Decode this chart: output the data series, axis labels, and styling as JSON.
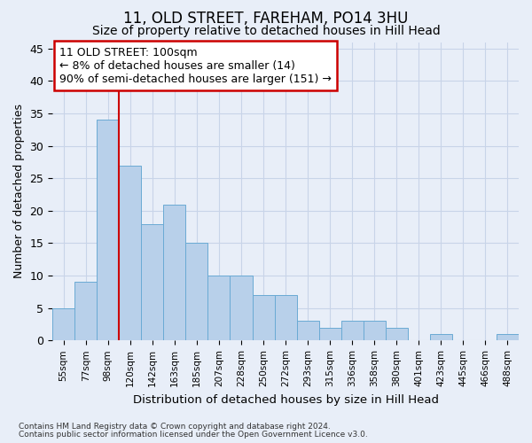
{
  "title": "11, OLD STREET, FAREHAM, PO14 3HU",
  "subtitle": "Size of property relative to detached houses in Hill Head",
  "xlabel": "Distribution of detached houses by size in Hill Head",
  "ylabel": "Number of detached properties",
  "categories": [
    "55sqm",
    "77sqm",
    "98sqm",
    "120sqm",
    "142sqm",
    "163sqm",
    "185sqm",
    "207sqm",
    "228sqm",
    "250sqm",
    "272sqm",
    "293sqm",
    "315sqm",
    "336sqm",
    "358sqm",
    "380sqm",
    "401sqm",
    "423sqm",
    "445sqm",
    "466sqm",
    "488sqm"
  ],
  "values": [
    5,
    9,
    34,
    27,
    18,
    21,
    15,
    10,
    10,
    7,
    7,
    3,
    2,
    3,
    3,
    2,
    0,
    1,
    0,
    0,
    1
  ],
  "bar_color": "#b8d0ea",
  "bar_edge_color": "#6aaad4",
  "annotation_text": "11 OLD STREET: 100sqm\n← 8% of detached houses are smaller (14)\n90% of semi-detached houses are larger (151) →",
  "annotation_box_color": "#ffffff",
  "annotation_box_edge": "#cc0000",
  "ylim": [
    0,
    46
  ],
  "yticks": [
    0,
    5,
    10,
    15,
    20,
    25,
    30,
    35,
    40,
    45
  ],
  "grid_color": "#c8d4e8",
  "background_color": "#e8eef8",
  "redline_color": "#cc0000",
  "footer_line1": "Contains HM Land Registry data © Crown copyright and database right 2024.",
  "footer_line2": "Contains public sector information licensed under the Open Government Licence v3.0."
}
